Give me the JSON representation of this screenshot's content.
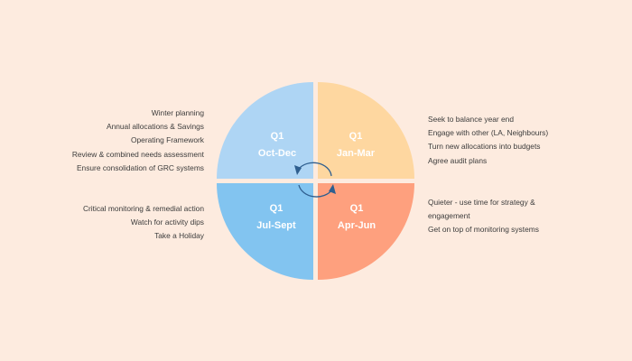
{
  "quadrants": {
    "top_left": {
      "quarter": "Q1",
      "period": "Oct-Dec",
      "color": "#aed5f4"
    },
    "top_right": {
      "quarter": "Q1",
      "period": "Jan-Mar",
      "color": "#fed7a0"
    },
    "bottom_left": {
      "quarter": "Q1",
      "period": "Jul-Sept",
      "color": "#82c4f0"
    },
    "bottom_right": {
      "quarter": "Q1",
      "period": "Apr-Jun",
      "color": "#fea07e"
    }
  },
  "notes": {
    "top_left": [
      "Winter planning",
      "Annual allocations & Savings",
      "Operating Framework",
      "Review & combined needs assessment",
      "Ensure consolidation of GRC systems"
    ],
    "bottom_left": [
      "Critical monitoring & remedial action",
      "Watch for activity dips",
      "Take a Holiday"
    ],
    "top_right": [
      "Seek to balance year end",
      "Engage with other (LA, Neighbours)",
      "Turn new allocations into budgets",
      "Agree audit plans"
    ],
    "bottom_right": [
      "Quieter - use time for strategy &",
      "engagement",
      "Get on top of monitoring systems"
    ]
  },
  "colors": {
    "background": "#fdebdf",
    "cycle_arrows": "#2f5f8f",
    "quadrant_text": "#ffffff"
  }
}
